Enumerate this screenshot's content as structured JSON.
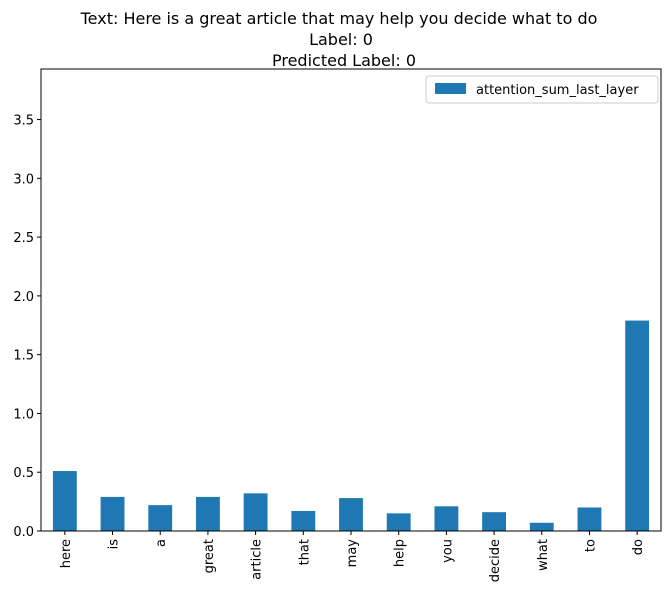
{
  "chart_data": {
    "type": "bar",
    "title_lines": [
      "Text: Here is a great article that may help you decide what to do",
      "Label: 0",
      "Predicted Label: 0"
    ],
    "categories": [
      "here",
      "is",
      "a",
      "great",
      "article",
      "that",
      "may",
      "help",
      "you",
      "decide",
      "what",
      "to",
      "do"
    ],
    "series": [
      {
        "name": "attention_sum_last_layer",
        "values": [
          0.51,
          0.29,
          0.22,
          0.29,
          0.32,
          0.17,
          0.28,
          0.15,
          0.21,
          0.16,
          0.07,
          0.2,
          1.79
        ]
      }
    ],
    "xlabel": "",
    "ylabel": "",
    "ylim": [
      0,
      3.93
    ],
    "yticks": [
      0.0,
      0.5,
      1.0,
      1.5,
      2.0,
      2.5,
      3.0,
      3.5
    ],
    "ytick_labels": [
      "0.0",
      "0.5",
      "1.0",
      "1.5",
      "2.0",
      "2.5",
      "3.0",
      "3.5"
    ],
    "grid": false,
    "legend_position": "top-right",
    "colors": {
      "bar": "#1f77b4",
      "axis": "#000000",
      "legend_border": "#cccccc"
    }
  }
}
